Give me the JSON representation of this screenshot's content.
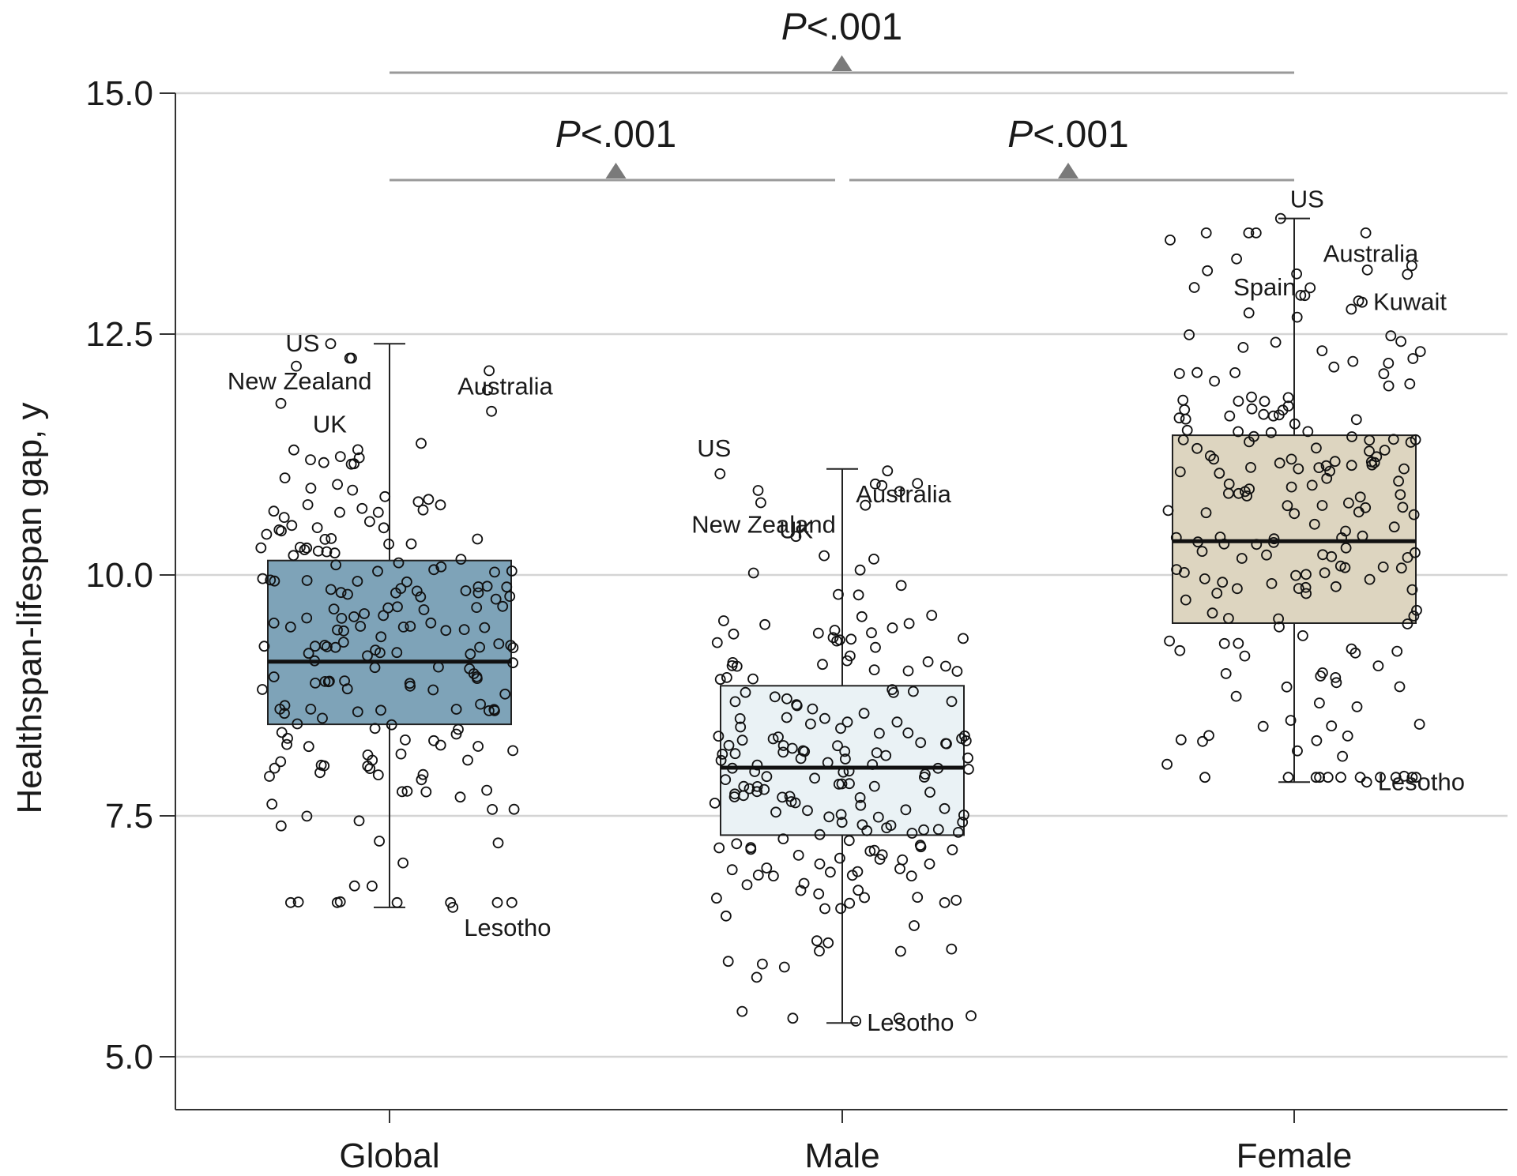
{
  "chart_data": {
    "type": "box",
    "ylabel": "Healthspan-lifespan gap, y",
    "ylim": [
      4.5,
      15.0
    ],
    "yticks": [
      5.0,
      7.5,
      10.0,
      12.5,
      15.0
    ],
    "ytick_labels": [
      "5.0",
      "7.5",
      "10.0",
      "12.5",
      "15.0"
    ],
    "grid": true,
    "categories": [
      "Global",
      "Male",
      "Female"
    ],
    "boxes": [
      {
        "category": "Global",
        "q1": 8.45,
        "median": 9.1,
        "q3": 10.15,
        "whisker_low": 6.55,
        "whisker_high": 12.4,
        "fill": "#7ea3b8"
      },
      {
        "category": "Male",
        "q1": 7.3,
        "median": 8.0,
        "q3": 8.85,
        "whisker_low": 5.35,
        "whisker_high": 11.1,
        "fill": "#eaf2f5"
      },
      {
        "category": "Female",
        "q1": 9.5,
        "median": 10.35,
        "q3": 11.45,
        "whisker_low": 7.85,
        "whisker_high": 13.7,
        "fill": "#ddd5c0"
      }
    ],
    "labeled_points": [
      {
        "category": "Global",
        "label": "US",
        "x_offset": -0.13,
        "y": 12.4
      },
      {
        "category": "Global",
        "label": "New Zealand",
        "x_offset": -0.24,
        "y": 11.78
      },
      {
        "category": "Global",
        "label": "UK",
        "x_offset": -0.07,
        "y": 11.3
      },
      {
        "category": "Global",
        "label": "Australia",
        "x_offset": 0.22,
        "y": 12.12
      },
      {
        "category": "Global",
        "label": "Lesotho",
        "x_offset": 0.14,
        "y": 6.55
      },
      {
        "category": "Male",
        "label": "US",
        "x_offset": -0.27,
        "y": 11.05
      },
      {
        "category": "Male",
        "label": "New Zealand",
        "x_offset": -0.18,
        "y": 10.75
      },
      {
        "category": "Male",
        "label": "UK",
        "x_offset": -0.04,
        "y": 10.2
      },
      {
        "category": "Male",
        "label": "Australia",
        "x_offset": 0.1,
        "y": 11.08
      },
      {
        "category": "Male",
        "label": "Lesotho",
        "x_offset": 0.03,
        "y": 5.37
      },
      {
        "category": "Female",
        "label": "US",
        "x_offset": -0.03,
        "y": 13.7
      },
      {
        "category": "Female",
        "label": "Spain",
        "x_offset": -0.1,
        "y": 12.72
      },
      {
        "category": "Female",
        "label": "Australia",
        "x_offset": 0.25,
        "y": 13.12
      },
      {
        "category": "Female",
        "label": "Kuwait",
        "x_offset": 0.15,
        "y": 12.83
      },
      {
        "category": "Female",
        "label": "Lesotho",
        "x_offset": 0.16,
        "y": 7.85
      }
    ],
    "comparisons": [
      {
        "from": "Global",
        "to": "Female",
        "label_p": "P",
        "label_rest": "<.001",
        "level": "top"
      },
      {
        "from": "Global",
        "to": "Male",
        "label_p": "P",
        "label_rest": "<.001",
        "level": "bottom"
      },
      {
        "from": "Male",
        "to": "Female",
        "label_p": "P",
        "label_rest": "<.001",
        "level": "bottom"
      }
    ]
  }
}
